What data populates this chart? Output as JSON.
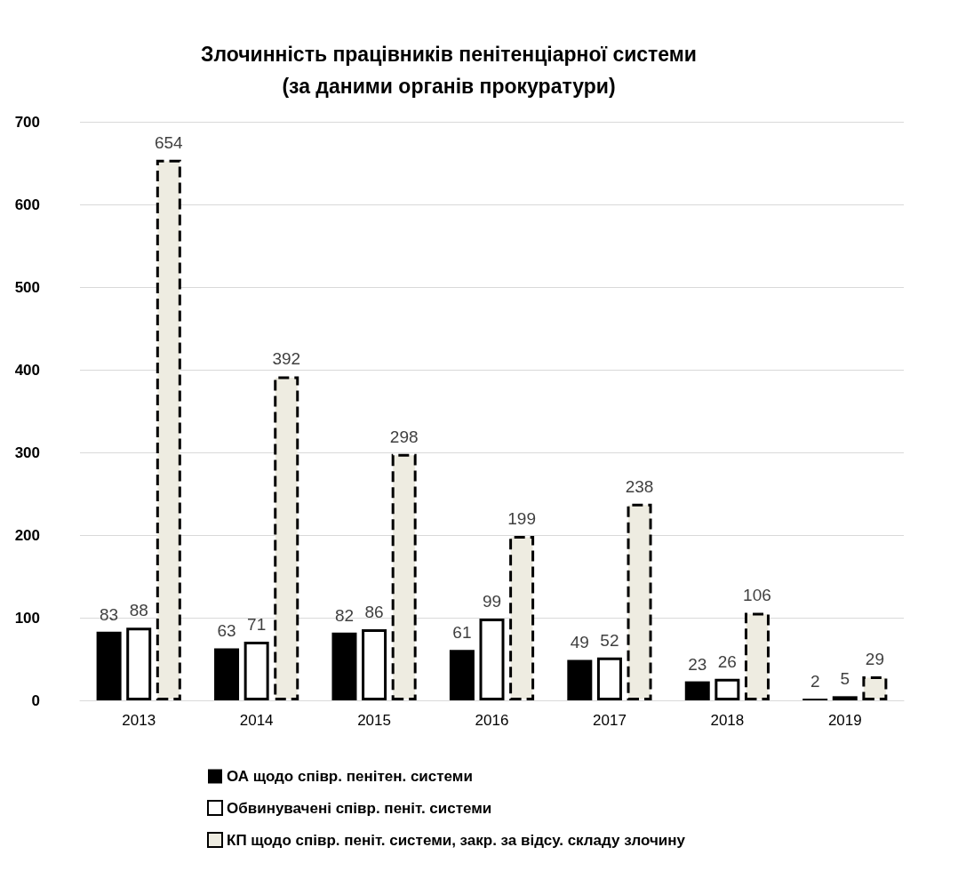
{
  "chart_data": {
    "type": "bar",
    "title": "Злочинність працівників пенітенціарної системи\n(за даними органів прокуратури)",
    "categories": [
      "2013",
      "2014",
      "2015",
      "2016",
      "2017",
      "2018",
      "2019"
    ],
    "series": [
      {
        "name": "ОА щодо співр. пенітен. системи",
        "color": "#000000",
        "line_style": "solid",
        "values": [
          83,
          63,
          82,
          61,
          49,
          23,
          2
        ]
      },
      {
        "name": "Обвинувачені співр. пеніт. системи",
        "color": "#ffffff",
        "line_style": "solid",
        "values": [
          88,
          71,
          86,
          99,
          52,
          26,
          5
        ]
      },
      {
        "name": "КП щодо співр. пеніт. системи, закр. за відсу. складу злочину",
        "color": "#eeece1",
        "line_style": "dashed",
        "values": [
          654,
          392,
          298,
          199,
          238,
          106,
          29
        ]
      }
    ],
    "ylim": [
      0,
      700
    ],
    "yticks": [
      0,
      100,
      200,
      300,
      400,
      500,
      600,
      700
    ],
    "grid": "y",
    "legend": "bottom",
    "data_labels": true
  }
}
